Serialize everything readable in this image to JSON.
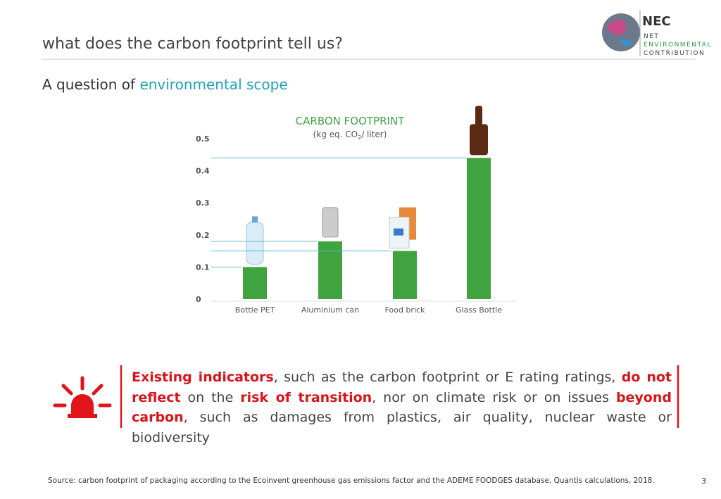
{
  "header": {
    "title": "what does the carbon footprint tell us?",
    "subtitle_lead": "A question of ",
    "subtitle_highlight": "environmental scope"
  },
  "logo": {
    "mark": "NEC",
    "lines": [
      "NET",
      "ENVIRONMENTAL",
      "CONTRIBUTION"
    ]
  },
  "chart_data": {
    "type": "bar",
    "title": "CARBON FOOTPRINT",
    "subtitle_parts": [
      "(kg eq. CO",
      "2",
      "/ liter)"
    ],
    "categories": [
      "Bottle PET",
      "Aluminium can",
      "Food brick",
      "Glass Bottle"
    ],
    "values": [
      0.1,
      0.18,
      0.15,
      0.44
    ],
    "color": "#3fa33f",
    "reference_color": "#5bb8d4",
    "ylim": [
      0,
      0.5
    ],
    "yticks": [
      0,
      0.1,
      0.2,
      0.3,
      0.4,
      0.5
    ],
    "grid": false
  },
  "callout": {
    "segments": [
      "Existing indicators",
      ", such as the carbon footprint or E rating ratings, ",
      "do not reflect",
      " on the ",
      "risk of transition",
      ", nor on climate risk or on issues ",
      "beyond carbon",
      ", such as damages from plastics, air quality, nuclear waste or biodiversity"
    ]
  },
  "footer": {
    "source": "Source: carbon footprint of packaging according to the Ecoinvent greenhouse gas emissions factor and the ADEME FOODGES database, Quantis calculations, 2018.",
    "page": "3"
  }
}
